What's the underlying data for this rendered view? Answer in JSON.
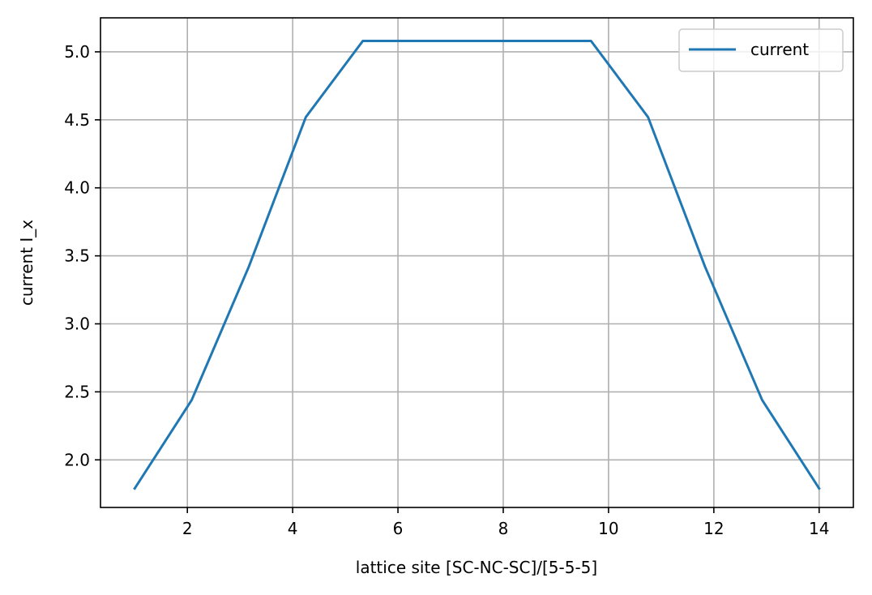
{
  "chart_data": {
    "type": "line",
    "xlabel": "lattice site [SC-NC-SC]/[5-5-5]",
    "ylabel": "current I_x",
    "xlim": [
      0.35,
      14.65
    ],
    "ylim": [
      1.65,
      5.25
    ],
    "xticks": [
      2,
      4,
      6,
      8,
      10,
      12,
      14
    ],
    "yticks": [
      2.0,
      2.5,
      3.0,
      3.5,
      4.0,
      4.5,
      5.0
    ],
    "xtick_labels": [
      "2",
      "4",
      "6",
      "8",
      "10",
      "12",
      "14"
    ],
    "ytick_labels": [
      "2.0",
      "2.5",
      "3.0",
      "3.5",
      "4.0",
      "4.5",
      "5.0"
    ],
    "grid": true,
    "legend_position": "top-right",
    "series": [
      {
        "name": "current",
        "color": "#1f77b4",
        "x": [
          1.0,
          2.083,
          3.167,
          4.25,
          5.333,
          6.417,
          7.5,
          8.583,
          9.667,
          10.75,
          11.833,
          12.917,
          14.0
        ],
        "y": [
          1.79,
          2.44,
          3.42,
          4.52,
          5.08,
          5.08,
          5.08,
          5.08,
          5.08,
          4.52,
          3.42,
          2.44,
          1.79
        ]
      }
    ]
  }
}
